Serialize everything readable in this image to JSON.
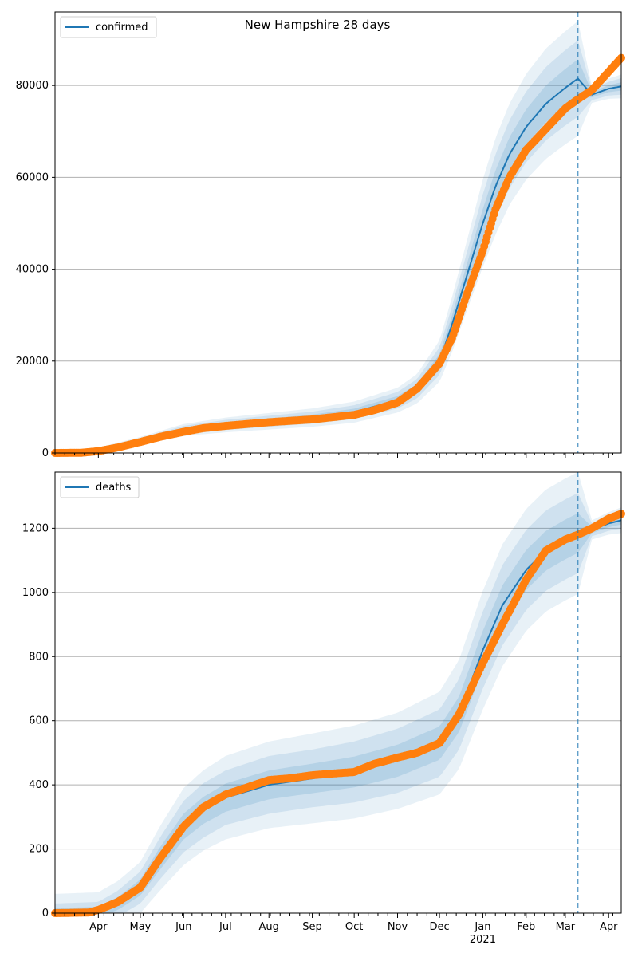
{
  "figure_title": "New Hampshire 28 days",
  "colors": {
    "model": "#1f77b4",
    "observed": "#ff7f0e",
    "band": "#1f77b4",
    "grid": "#b0b0b0"
  },
  "x_tick_labels": [
    "Apr",
    "May",
    "Jun",
    "Jul",
    "Aug",
    "Sep",
    "Oct",
    "Nov",
    "Dec",
    "Jan",
    "Feb",
    "Mar",
    "Apr"
  ],
  "x_year_label": "2021",
  "chart_data": [
    {
      "type": "line",
      "panel": "top",
      "legend": "confirmed",
      "legend_position": "top-left",
      "grid": "y",
      "ylim": [
        0,
        96000
      ],
      "yticks": [
        0,
        20000,
        40000,
        60000,
        80000
      ],
      "xrange": [
        "2020-03-01",
        "2021-04-10"
      ],
      "forecast_start": "2021-03-10",
      "model_x": [
        "2020-03-01",
        "2020-04-01",
        "2020-05-01",
        "2020-06-01",
        "2020-07-01",
        "2020-08-01",
        "2020-09-01",
        "2020-10-01",
        "2020-11-01",
        "2020-11-15",
        "2020-12-01",
        "2020-12-10",
        "2020-12-20",
        "2021-01-01",
        "2021-01-10",
        "2021-01-20",
        "2021-02-01",
        "2021-02-15",
        "2021-03-01",
        "2021-03-10",
        "2021-03-20",
        "2021-04-01",
        "2021-04-10"
      ],
      "model_y": [
        0,
        600,
        2600,
        5000,
        6100,
        6900,
        7700,
        8900,
        11500,
        14000,
        20000,
        28000,
        38000,
        50000,
        58000,
        65000,
        71000,
        76000,
        79500,
        81500,
        78000,
        79300,
        79800
      ],
      "band_outer_half_width": [
        300,
        600,
        900,
        1300,
        1600,
        1800,
        2000,
        2300,
        2700,
        3200,
        4500,
        6000,
        7500,
        9500,
        10500,
        11000,
        11500,
        12000,
        12300,
        12500,
        1800,
        2200,
        2600
      ],
      "band_mid_half_width": [
        200,
        400,
        600,
        900,
        1100,
        1200,
        1300,
        1500,
        1800,
        2100,
        3000,
        4000,
        5000,
        6300,
        7000,
        7400,
        7700,
        8000,
        8200,
        8300,
        1200,
        1500,
        1800
      ],
      "band_inner_half_width": [
        100,
        200,
        300,
        450,
        550,
        600,
        650,
        750,
        900,
        1000,
        1500,
        2000,
        2500,
        3100,
        3500,
        3700,
        3800,
        4000,
        4100,
        4200,
        600,
        750,
        900
      ],
      "observed_x": [
        "2020-03-01",
        "2020-03-20",
        "2020-04-01",
        "2020-04-15",
        "2020-05-01",
        "2020-05-15",
        "2020-06-01",
        "2020-06-15",
        "2020-07-01",
        "2020-08-01",
        "2020-09-01",
        "2020-10-01",
        "2020-10-15",
        "2020-11-01",
        "2020-11-15",
        "2020-12-01",
        "2020-12-10",
        "2020-12-20",
        "2021-01-01",
        "2021-01-10",
        "2021-01-20",
        "2021-02-01",
        "2021-02-15",
        "2021-03-01",
        "2021-03-10",
        "2021-03-20",
        "2021-04-01",
        "2021-04-10"
      ],
      "observed_y": [
        0,
        50,
        400,
        1200,
        2400,
        3500,
        4600,
        5400,
        5900,
        6700,
        7300,
        8300,
        9300,
        11000,
        14000,
        19500,
        25000,
        34000,
        44000,
        53000,
        60000,
        66000,
        70500,
        75000,
        77000,
        79000,
        83000,
        86000
      ]
    },
    {
      "type": "line",
      "panel": "bottom",
      "legend": "deaths",
      "legend_position": "top-left",
      "grid": "y",
      "ylim": [
        0,
        1375
      ],
      "yticks": [
        0,
        200,
        400,
        600,
        800,
        1000,
        1200
      ],
      "xrange": [
        "2020-03-01",
        "2021-04-10"
      ],
      "forecast_start": "2021-03-10",
      "model_x": [
        "2020-03-01",
        "2020-04-01",
        "2020-04-15",
        "2020-05-01",
        "2020-05-15",
        "2020-06-01",
        "2020-06-15",
        "2020-07-01",
        "2020-08-01",
        "2020-09-01",
        "2020-10-01",
        "2020-11-01",
        "2020-12-01",
        "2020-12-15",
        "2021-01-01",
        "2021-01-15",
        "2021-02-01",
        "2021-02-15",
        "2021-03-01",
        "2021-03-10",
        "2021-03-20",
        "2021-04-01",
        "2021-04-10"
      ],
      "model_y": [
        0,
        5,
        30,
        80,
        170,
        270,
        320,
        360,
        400,
        420,
        440,
        475,
        530,
        620,
        820,
        960,
        1070,
        1130,
        1165,
        1185,
        1195,
        1215,
        1225
      ],
      "band_outer_half_width": [
        60,
        60,
        70,
        80,
        100,
        120,
        125,
        130,
        135,
        140,
        145,
        150,
        160,
        170,
        185,
        190,
        190,
        190,
        190,
        190,
        30,
        35,
        40
      ],
      "band_mid_half_width": [
        30,
        30,
        40,
        50,
        65,
        80,
        85,
        85,
        90,
        90,
        95,
        100,
        105,
        110,
        120,
        125,
        125,
        125,
        125,
        125,
        20,
        23,
        26
      ],
      "band_inner_half_width": [
        15,
        15,
        20,
        25,
        35,
        40,
        42,
        44,
        45,
        46,
        48,
        50,
        52,
        55,
        60,
        62,
        62,
        62,
        62,
        62,
        10,
        12,
        13
      ],
      "observed_x": [
        "2020-03-01",
        "2020-03-25",
        "2020-04-01",
        "2020-04-15",
        "2020-05-01",
        "2020-05-15",
        "2020-06-01",
        "2020-06-15",
        "2020-07-01",
        "2020-07-15",
        "2020-08-01",
        "2020-08-15",
        "2020-09-01",
        "2020-09-15",
        "2020-10-01",
        "2020-10-15",
        "2020-11-01",
        "2020-11-15",
        "2020-12-01",
        "2020-12-15",
        "2021-01-01",
        "2021-01-15",
        "2021-02-01",
        "2021-02-15",
        "2021-03-01",
        "2021-03-10",
        "2021-03-20",
        "2021-04-01",
        "2021-04-10"
      ],
      "observed_y": [
        0,
        2,
        10,
        35,
        80,
        170,
        270,
        330,
        370,
        390,
        415,
        420,
        430,
        435,
        440,
        465,
        485,
        500,
        530,
        620,
        780,
        900,
        1040,
        1130,
        1165,
        1180,
        1200,
        1230,
        1245
      ]
    }
  ]
}
